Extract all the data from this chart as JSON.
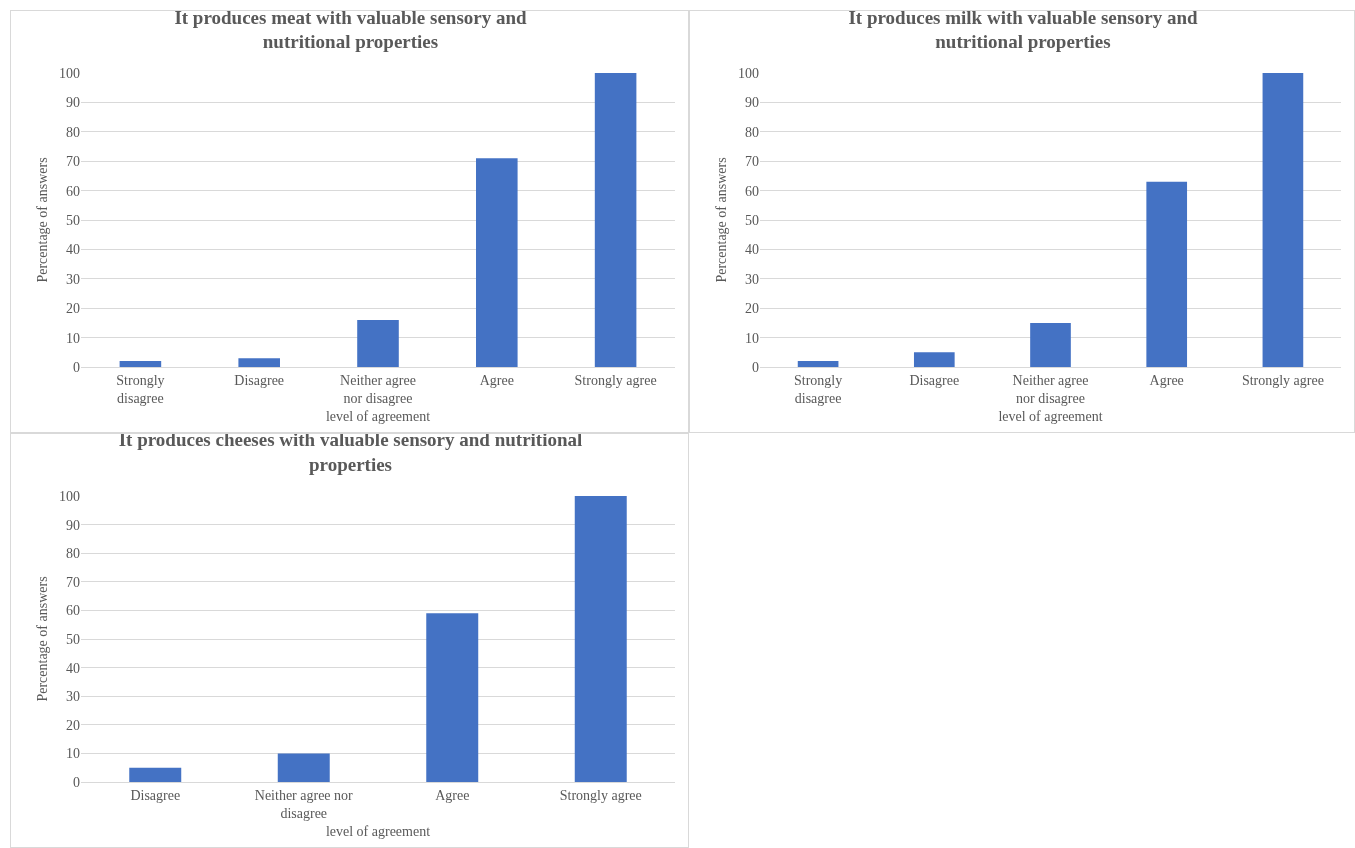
{
  "chart_data": [
    {
      "type": "bar",
      "title": "It produces meat with valuable sensory and nutritional properties",
      "xlabel": "level of agreement",
      "ylabel": "Percentage of answers",
      "categories": [
        "Strongly disagree",
        "Disagree",
        "Neither agree nor disagree",
        "Agree",
        "Strongly agree"
      ],
      "values": [
        2,
        3,
        16,
        71,
        100
      ],
      "color": "#4472c4",
      "ylim": [
        0,
        100
      ],
      "yticks": [
        0,
        10,
        20,
        30,
        40,
        50,
        60,
        70,
        80,
        90,
        100
      ],
      "grid": "y"
    },
    {
      "type": "bar",
      "title": "It produces milk with valuable sensory and nutritional properties",
      "xlabel": "level of agreement",
      "ylabel": "Percentage of answers",
      "categories": [
        "Strongly disagree",
        "Disagree",
        "Neither agree nor disagree",
        "Agree",
        "Strongly agree"
      ],
      "values": [
        2,
        5,
        15,
        63,
        100
      ],
      "color": "#4472c4",
      "ylim": [
        0,
        100
      ],
      "yticks": [
        0,
        10,
        20,
        30,
        40,
        50,
        60,
        70,
        80,
        90,
        100
      ],
      "grid": "y"
    },
    {
      "type": "bar",
      "title": "It produces cheeses with valuable sensory and nutritional properties",
      "xlabel": "level of agreement",
      "ylabel": "Percentage of answers",
      "categories": [
        "Disagree",
        "Neither agree nor disagree",
        "Agree",
        "Strongly agree"
      ],
      "values": [
        5,
        10,
        59,
        100
      ],
      "color": "#4472c4",
      "ylim": [
        0,
        100
      ],
      "yticks": [
        0,
        10,
        20,
        30,
        40,
        50,
        60,
        70,
        80,
        90,
        100
      ],
      "grid": "y"
    }
  ]
}
